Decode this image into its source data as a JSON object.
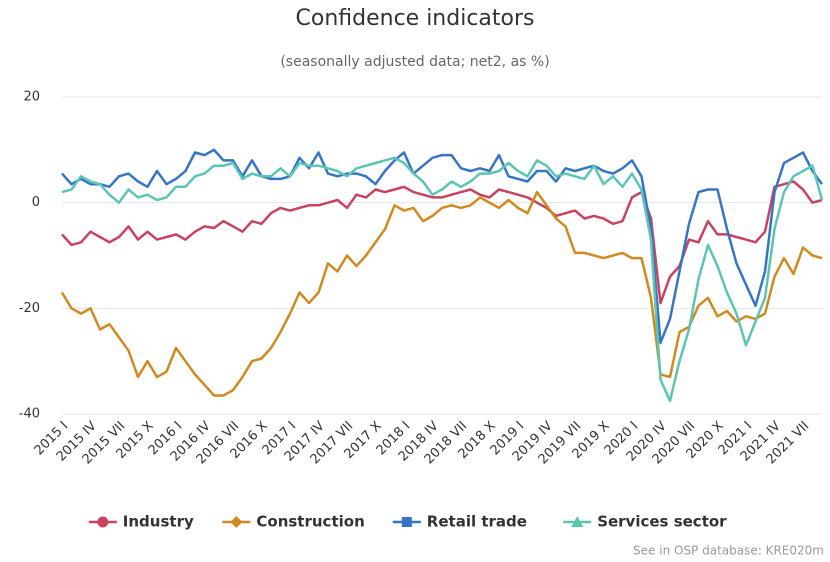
{
  "chart_data": {
    "type": "line",
    "title": "Confidence indicators",
    "subtitle": "(seasonally adjusted data; net2, as %)",
    "source": "See in OSP database: KRE020m",
    "categories": [
      "2015 I",
      null,
      null,
      "2015 IV",
      null,
      null,
      "2015 VII",
      null,
      null,
      "2015 X",
      null,
      null,
      "2016 I",
      null,
      null,
      "2016 IV",
      null,
      null,
      "2016 VII",
      null,
      null,
      "2016 X",
      null,
      null,
      "2017 I",
      null,
      null,
      "2017 IV",
      null,
      null,
      "2017 VII",
      null,
      null,
      "2017 X",
      null,
      null,
      "2018 I",
      null,
      null,
      "2018 IV",
      null,
      null,
      "2018 VII",
      null,
      null,
      "2018 X",
      null,
      null,
      "2019 I",
      null,
      null,
      "2019 IV",
      null,
      null,
      "2019 VII",
      null,
      null,
      "2019 X",
      null,
      null,
      "2020 I",
      null,
      null,
      "2020 IV",
      null,
      null,
      "2020 VII",
      null,
      null,
      "2020 X",
      null,
      null,
      "2021 I",
      null,
      null,
      "2021 IV",
      null,
      null,
      "2021 VII",
      null,
      null
    ],
    "ylim": [
      -40,
      20
    ],
    "yticks": [
      -40,
      -20,
      0,
      20
    ],
    "grid": true,
    "series": [
      {
        "name": "Industry",
        "color": "#c8435f",
        "marker": "circle",
        "values": [
          -6,
          -8,
          -7.5,
          -5.5,
          -6.5,
          -7.5,
          -6.5,
          -4.5,
          -7,
          -5.5,
          -7,
          -6.5,
          -6,
          -7,
          -5.5,
          -4.5,
          -4.8,
          -3.5,
          -4.5,
          -5.5,
          -3.5,
          -4,
          -2,
          -1,
          -1.5,
          -1,
          -0.5,
          -0.5,
          0,
          0.5,
          -1,
          1.5,
          1,
          2.5,
          2,
          2.5,
          3,
          2,
          1.5,
          1,
          1,
          1.5,
          2,
          2.5,
          1.5,
          1,
          2.5,
          2,
          1.5,
          1,
          0,
          -1,
          -2.5,
          -2,
          -1.5,
          -3,
          -2.5,
          -3,
          -4,
          -3.5,
          1,
          2,
          -3,
          -19,
          -14,
          -12,
          -7,
          -7.5,
          -3.5,
          -6,
          -6,
          -6.5,
          -7,
          -7.5,
          -5.5,
          3,
          3.5,
          4,
          2.5,
          0,
          0.5
        ]
      },
      {
        "name": "Construction",
        "color": "#d08a1f",
        "marker": "diamond",
        "values": [
          -17,
          -20,
          -21,
          -20,
          -24,
          -23,
          -25.5,
          -28,
          -33,
          -30,
          -33,
          -32,
          -27.5,
          -30,
          -32.5,
          -34.5,
          -36.5,
          -36.5,
          -35.5,
          -33,
          -30,
          -29.5,
          -27.5,
          -24.5,
          -21,
          -17,
          -19,
          -17,
          -11.5,
          -13,
          -10,
          -12,
          -10,
          -7.5,
          -5,
          -0.5,
          -1.5,
          -1,
          -3.5,
          -2.5,
          -1,
          -0.5,
          -1,
          -0.5,
          1,
          0,
          -1,
          0.5,
          -1,
          -2,
          2,
          -0.5,
          -3,
          -4.5,
          -9.5,
          -9.5,
          -10,
          -10.5,
          -10,
          -9.5,
          -10.5,
          -10.5,
          -18,
          -32.5,
          -33,
          -24.5,
          -23.5,
          -19.5,
          -18,
          -21.5,
          -20.5,
          -22.5,
          -21.5,
          -22,
          -21,
          -14,
          -10.5,
          -13.5,
          -8.5,
          -10,
          -10.5
        ]
      },
      {
        "name": "Retail trade",
        "color": "#3575c4",
        "marker": "square",
        "values": [
          5.5,
          3.5,
          4.5,
          3.5,
          3.5,
          3,
          5,
          5.5,
          4,
          3,
          6,
          3.5,
          4.5,
          6,
          9.5,
          9,
          10,
          8,
          8,
          5,
          8,
          5,
          4.5,
          4.5,
          5,
          8.5,
          6.5,
          9.5,
          5.5,
          5,
          5.5,
          5.5,
          5,
          3.5,
          6,
          8,
          9.5,
          5.5,
          7,
          8.5,
          9,
          9,
          6.5,
          6,
          6.5,
          6,
          9,
          5,
          4.5,
          4,
          6,
          6,
          4,
          6.5,
          6,
          6.5,
          7,
          6,
          5.5,
          6.5,
          8,
          5,
          -5,
          -26.5,
          -22,
          -13,
          -4,
          2,
          2.5,
          2.5,
          -5,
          -11.5,
          -15.5,
          -19.5,
          -13,
          2,
          7.5,
          8.5,
          9.5,
          6,
          3.5
        ]
      },
      {
        "name": "Services sector",
        "color": "#5cc4b5",
        "marker": "triangle",
        "values": [
          2,
          2.5,
          5,
          4,
          3.5,
          1.5,
          0,
          2.5,
          1,
          1.5,
          0.5,
          1,
          3,
          3,
          5,
          5.5,
          7,
          7,
          7.5,
          4.5,
          5.5,
          5,
          5,
          6.5,
          5,
          7.5,
          7,
          7,
          6.5,
          6,
          5,
          6.5,
          7,
          7.5,
          8,
          8.5,
          7.5,
          5.5,
          4,
          1.5,
          2.5,
          4,
          3,
          4,
          5.5,
          5.5,
          6,
          7.5,
          6,
          5,
          8,
          7,
          5,
          5.5,
          5,
          4.5,
          7,
          3.5,
          5,
          3,
          5.5,
          2.5,
          -7,
          -33.5,
          -37.5,
          -30,
          -24,
          -14.5,
          -8,
          -12,
          -17,
          -21,
          -27,
          -22.5,
          -18,
          -5,
          2,
          5,
          6,
          7,
          0.5
        ]
      }
    ]
  }
}
